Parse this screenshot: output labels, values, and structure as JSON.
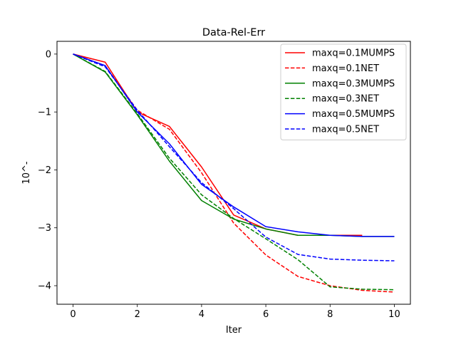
{
  "chart_data": {
    "type": "line",
    "title": "Data-Rel-Err",
    "xlabel": "Iter",
    "ylabel": "10^-",
    "xlim": [
      -0.5,
      10.5
    ],
    "ylim": [
      -4.32,
      0.22
    ],
    "xticks": [
      0,
      2,
      4,
      6,
      8,
      10
    ],
    "xtick_labels": [
      "0",
      "2",
      "4",
      "6",
      "8",
      "10"
    ],
    "yticks": [
      0,
      -1,
      -2,
      -3,
      -4
    ],
    "ytick_labels": [
      "0",
      "−1",
      "−2",
      "−3",
      "−4"
    ],
    "grid": false,
    "legend_position": "upper right",
    "series": [
      {
        "name": "maxq=0.1MUMPS",
        "color": "#ff0000",
        "dash": "solid",
        "x": [
          0,
          1,
          2,
          3,
          4,
          5,
          6,
          7,
          8,
          9
        ],
        "y": [
          0.0,
          -0.14,
          -1.0,
          -1.25,
          -1.95,
          -2.78,
          -3.02,
          -3.13,
          -3.13,
          -3.13
        ]
      },
      {
        "name": "maxq=0.1NET",
        "color": "#ff0000",
        "dash": "dashed",
        "x": [
          0,
          1,
          2,
          3,
          4,
          5,
          6,
          7,
          8,
          9,
          10
        ],
        "y": [
          0.0,
          -0.2,
          -0.97,
          -1.3,
          -2.05,
          -2.92,
          -3.47,
          -3.84,
          -4.0,
          -4.08,
          -4.11
        ]
      },
      {
        "name": "maxq=0.3MUMPS",
        "color": "#008000",
        "dash": "solid",
        "x": [
          0,
          1,
          2,
          3,
          4,
          5,
          6,
          7,
          8,
          9,
          10
        ],
        "y": [
          0.0,
          -0.31,
          -1.05,
          -1.85,
          -2.53,
          -2.85,
          -3.02,
          -3.13,
          -3.13,
          -3.15,
          -3.15
        ]
      },
      {
        "name": "maxq=0.3NET",
        "color": "#008000",
        "dash": "dashed",
        "x": [
          0,
          1,
          2,
          3,
          4,
          5,
          6,
          7,
          8,
          9,
          10
        ],
        "y": [
          0.0,
          -0.3,
          -1.03,
          -1.8,
          -2.43,
          -2.84,
          -3.19,
          -3.55,
          -4.02,
          -4.06,
          -4.07
        ]
      },
      {
        "name": "maxq=0.5MUMPS",
        "color": "#0000ff",
        "dash": "solid",
        "x": [
          0,
          1,
          2,
          3,
          4,
          5,
          6,
          7,
          8,
          9,
          10
        ],
        "y": [
          0.0,
          -0.2,
          -1.0,
          -1.55,
          -2.25,
          -2.64,
          -2.98,
          -3.07,
          -3.13,
          -3.15,
          -3.15
        ]
      },
      {
        "name": "maxq=0.5NET",
        "color": "#0000ff",
        "dash": "dashed",
        "x": [
          0,
          1,
          2,
          3,
          4,
          5,
          6,
          7,
          8,
          9,
          10
        ],
        "y": [
          0.0,
          -0.22,
          -0.97,
          -1.6,
          -2.22,
          -2.67,
          -3.16,
          -3.46,
          -3.54,
          -3.56,
          -3.57
        ]
      }
    ]
  }
}
